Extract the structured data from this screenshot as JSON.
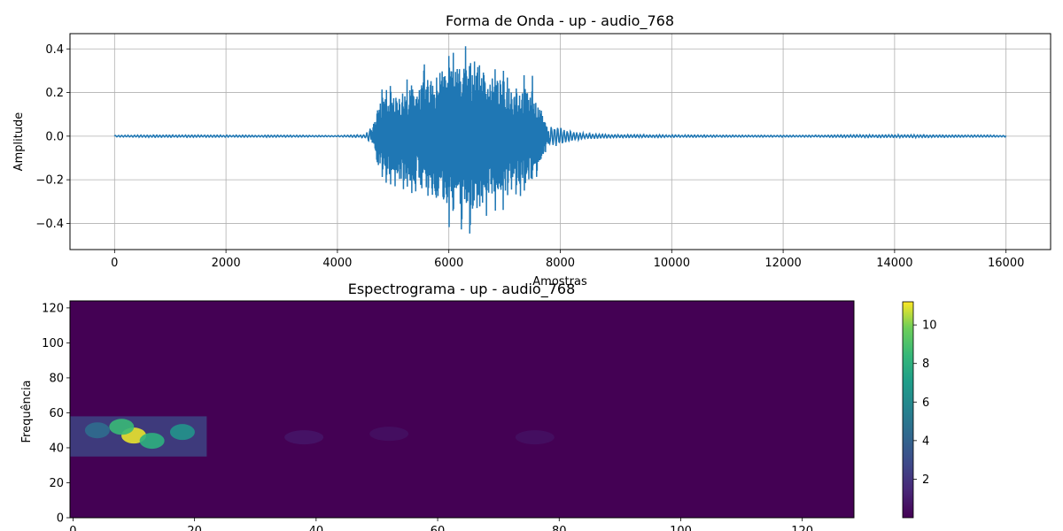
{
  "chart_data": [
    {
      "type": "line",
      "title": "Forma de Onda - up - audio_768",
      "xlabel": "Amostras",
      "ylabel": "Amplitude",
      "xlim": [
        -800,
        16800
      ],
      "ylim": [
        -0.52,
        0.47
      ],
      "grid": true,
      "x_ticks": [
        0,
        2000,
        4000,
        6000,
        8000,
        10000,
        12000,
        14000,
        16000
      ],
      "y_ticks": [
        -0.4,
        -0.2,
        0.0,
        0.2,
        0.4
      ],
      "color": "#1f77b4",
      "series": [
        {
          "x": [
            0,
            1000,
            2000,
            3000,
            4000,
            4500,
            4650,
            4750,
            5000,
            5250,
            5500,
            5750,
            6000,
            6250,
            6450,
            6750,
            7000,
            7250,
            7500,
            7600,
            7750,
            8000,
            8250,
            8500,
            9000,
            10000,
            12000,
            13000,
            14000,
            15000,
            16000
          ],
          "envelope": [
            0.004,
            0.006,
            0.005,
            0.005,
            0.003,
            0.008,
            0.06,
            0.22,
            0.25,
            0.28,
            0.32,
            0.38,
            0.42,
            0.44,
            0.47,
            0.36,
            0.34,
            0.31,
            0.28,
            0.2,
            0.06,
            0.04,
            0.02,
            0.012,
            0.008,
            0.006,
            0.004,
            0.006,
            0.007,
            0.006,
            0.004
          ]
        }
      ]
    },
    {
      "type": "heatmap",
      "title": "Espectrograma - up - audio_768",
      "xlabel": "",
      "ylabel": "Frequência",
      "xlim": [
        -0.5,
        128.5
      ],
      "ylim": [
        0,
        124
      ],
      "x_ticks": [
        0,
        20,
        40,
        60,
        80,
        100,
        120
      ],
      "y_ticks": [
        0,
        20,
        40,
        60,
        80,
        100,
        120
      ],
      "colormap": "viridis",
      "colorbar": {
        "min": 0,
        "max": 11.2,
        "ticks": [
          2,
          4,
          6,
          8,
          10
        ]
      },
      "hotspots": [
        {
          "t": 10,
          "f": 47,
          "value": 11.0
        },
        {
          "t": 8,
          "f": 52,
          "value": 8.5
        },
        {
          "t": 13,
          "f": 44,
          "value": 8.0
        },
        {
          "t": 18,
          "f": 49,
          "value": 6.5
        },
        {
          "t": 4,
          "f": 50,
          "value": 4.5
        },
        {
          "t": 38,
          "f": 46,
          "value": 1.2
        },
        {
          "t": 52,
          "f": 48,
          "value": 0.9
        },
        {
          "t": 76,
          "f": 46,
          "value": 0.9
        }
      ],
      "band": {
        "f_range": [
          35,
          58
        ],
        "t_range": [
          0,
          22
        ],
        "value": 3.0
      }
    }
  ]
}
